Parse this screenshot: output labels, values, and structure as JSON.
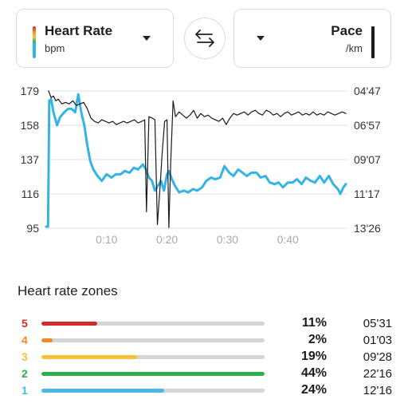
{
  "left_selector": {
    "title": "Heart Rate",
    "unit": "bpm"
  },
  "right_selector": {
    "title": "Pace",
    "unit": "/km"
  },
  "chart_data": {
    "type": "line",
    "x_ticks": [
      "0:10",
      "0:20",
      "0:30",
      "0:40"
    ],
    "x_tick_minutes": [
      10,
      20,
      30,
      40
    ],
    "x_range_minutes": [
      0,
      50
    ],
    "left_axis": {
      "ticks": [
        "179",
        "158",
        "137",
        "116",
        "95"
      ],
      "range": [
        95,
        179
      ]
    },
    "right_axis": {
      "ticks": [
        "04'47",
        "06'57",
        "09'07",
        "11'17",
        "13'26"
      ],
      "range_min_per_km": [
        4.783,
        13.433
      ]
    },
    "series": [
      {
        "name": "Heart Rate",
        "axis": "left",
        "color": "#35b3e6",
        "points": [
          [
            0,
            96
          ],
          [
            0.3,
            96
          ],
          [
            0.5,
            173
          ],
          [
            0.8,
            174
          ],
          [
            1.2,
            166
          ],
          [
            1.8,
            158
          ],
          [
            2.3,
            163
          ],
          [
            3,
            166
          ],
          [
            3.6,
            168
          ],
          [
            4.2,
            168
          ],
          [
            4.8,
            166
          ],
          [
            5.3,
            177
          ],
          [
            5.8,
            166
          ],
          [
            6.3,
            158
          ],
          [
            6.8,
            146
          ],
          [
            7.3,
            136
          ],
          [
            7.8,
            131
          ],
          [
            8.5,
            127
          ],
          [
            9.2,
            124
          ],
          [
            10,
            128
          ],
          [
            10.8,
            126
          ],
          [
            11.5,
            128
          ],
          [
            12.3,
            128
          ],
          [
            13,
            130
          ],
          [
            13.8,
            129
          ],
          [
            14.5,
            132
          ],
          [
            15.2,
            131
          ],
          [
            16,
            134
          ],
          [
            16.5,
            131
          ],
          [
            17,
            126
          ],
          [
            17.5,
            124
          ],
          [
            18,
            118
          ],
          [
            18.5,
            121
          ],
          [
            19,
            124
          ],
          [
            19.5,
            118
          ],
          [
            20,
            128
          ],
          [
            20.3,
            130
          ],
          [
            20.8,
            125
          ],
          [
            21.3,
            121
          ],
          [
            22,
            117
          ],
          [
            22.8,
            118
          ],
          [
            23.5,
            117
          ],
          [
            24.3,
            119
          ],
          [
            25,
            118
          ],
          [
            25.8,
            120
          ],
          [
            26.5,
            124
          ],
          [
            27.3,
            126
          ],
          [
            28,
            125
          ],
          [
            28.8,
            126
          ],
          [
            29.5,
            133
          ],
          [
            30.3,
            129
          ],
          [
            31,
            127
          ],
          [
            31.8,
            131
          ],
          [
            32.5,
            129
          ],
          [
            33.2,
            127
          ],
          [
            34,
            129
          ],
          [
            34.8,
            129
          ],
          [
            35.5,
            126
          ],
          [
            36.3,
            127
          ],
          [
            37,
            123
          ],
          [
            37.8,
            122
          ],
          [
            38.5,
            123
          ],
          [
            39.2,
            120
          ],
          [
            40,
            123
          ],
          [
            40.8,
            123
          ],
          [
            41.5,
            125
          ],
          [
            42.3,
            122
          ],
          [
            43,
            126
          ],
          [
            43.8,
            124
          ],
          [
            44.5,
            123
          ],
          [
            45.3,
            127
          ],
          [
            46,
            123
          ],
          [
            46.8,
            127
          ],
          [
            47.5,
            122
          ],
          [
            48.3,
            119
          ],
          [
            48.7,
            116
          ],
          [
            49.2,
            120
          ],
          [
            49.6,
            122
          ]
        ]
      },
      {
        "name": "Pace",
        "axis": "right",
        "color": "#1a1a1a",
        "points": [
          [
            0.4,
            4.78
          ],
          [
            0.8,
            5.2
          ],
          [
            1.2,
            5.1
          ],
          [
            1.6,
            5.4
          ],
          [
            2,
            5.3
          ],
          [
            2.6,
            5.6
          ],
          [
            3.2,
            5.5
          ],
          [
            3.8,
            5.6
          ],
          [
            4.4,
            5.4
          ],
          [
            5,
            5.7
          ],
          [
            5.6,
            5.6
          ],
          [
            6.2,
            5.5
          ],
          [
            6.8,
            5.9
          ],
          [
            7.4,
            6.5
          ],
          [
            8,
            6.7
          ],
          [
            8.6,
            6.8
          ],
          [
            9.2,
            6.6
          ],
          [
            9.8,
            6.7
          ],
          [
            10.4,
            6.8
          ],
          [
            11,
            6.7
          ],
          [
            11.6,
            6.9
          ],
          [
            12.2,
            6.8
          ],
          [
            12.8,
            6.7
          ],
          [
            13.4,
            6.8
          ],
          [
            14,
            6.7
          ],
          [
            14.6,
            6.6
          ],
          [
            15.2,
            6.8
          ],
          [
            15.8,
            6.7
          ],
          [
            16.3,
            6.6
          ],
          [
            16.6,
            12.4
          ],
          [
            17,
            6.4
          ],
          [
            17.6,
            6.5
          ],
          [
            18,
            6.6
          ],
          [
            18.4,
            13.2
          ],
          [
            18.8,
            11.1
          ],
          [
            19.2,
            8.7
          ],
          [
            19.6,
            6.7
          ],
          [
            20,
            6.6
          ],
          [
            20.3,
            13.4
          ],
          [
            20.6,
            9.5
          ],
          [
            21,
            5.4
          ],
          [
            21.4,
            6.4
          ],
          [
            22,
            6.1
          ],
          [
            22.6,
            6.3
          ],
          [
            23.2,
            6.5
          ],
          [
            23.8,
            6.3
          ],
          [
            24.4,
            6.0
          ],
          [
            25,
            6.5
          ],
          [
            25.6,
            6.2
          ],
          [
            26.2,
            6.4
          ],
          [
            26.8,
            6.3
          ],
          [
            27.4,
            6.5
          ],
          [
            28,
            6.6
          ],
          [
            28.6,
            6.7
          ],
          [
            29.2,
            6.5
          ],
          [
            29.8,
            6.9
          ],
          [
            30.4,
            6.5
          ],
          [
            31,
            6.2
          ],
          [
            31.6,
            6.3
          ],
          [
            32.2,
            6.2
          ],
          [
            32.8,
            6.1
          ],
          [
            33.4,
            6.3
          ],
          [
            34,
            6.1
          ],
          [
            34.6,
            6.0
          ],
          [
            35.2,
            6.2
          ],
          [
            35.8,
            6.3
          ],
          [
            36.4,
            6.0
          ],
          [
            37,
            6.1
          ],
          [
            37.6,
            6.3
          ],
          [
            38.2,
            6.2
          ],
          [
            38.8,
            6.4
          ],
          [
            39.4,
            6.2
          ],
          [
            40,
            6.1
          ],
          [
            40.6,
            6.3
          ],
          [
            41.2,
            6.2
          ],
          [
            41.8,
            6.1
          ],
          [
            42.4,
            6.3
          ],
          [
            43,
            6.2
          ],
          [
            43.6,
            6.3
          ],
          [
            44.2,
            6.1
          ],
          [
            44.8,
            6.3
          ],
          [
            45.4,
            6.2
          ],
          [
            46,
            6.3
          ],
          [
            46.6,
            6.1
          ],
          [
            47.2,
            6.2
          ],
          [
            47.8,
            6.3
          ],
          [
            48.4,
            6.2
          ],
          [
            49,
            6.1
          ],
          [
            49.6,
            6.2
          ]
        ]
      }
    ]
  },
  "zones": {
    "title": "Heart rate zones",
    "items": [
      {
        "num": "5",
        "color": "#d42a2a",
        "pct": "11%",
        "fraction": 0.25,
        "time": "05'31"
      },
      {
        "num": "4",
        "color": "#f08a24",
        "pct": "2%",
        "fraction": 0.05,
        "time": "01'03"
      },
      {
        "num": "3",
        "color": "#f5c23a",
        "pct": "19%",
        "fraction": 0.43,
        "time": "09'28"
      },
      {
        "num": "2",
        "color": "#2fae4d",
        "pct": "44%",
        "fraction": 1.0,
        "time": "22'16"
      },
      {
        "num": "1",
        "color": "#4ab7e6",
        "pct": "24%",
        "fraction": 0.55,
        "time": "12'16"
      }
    ]
  }
}
